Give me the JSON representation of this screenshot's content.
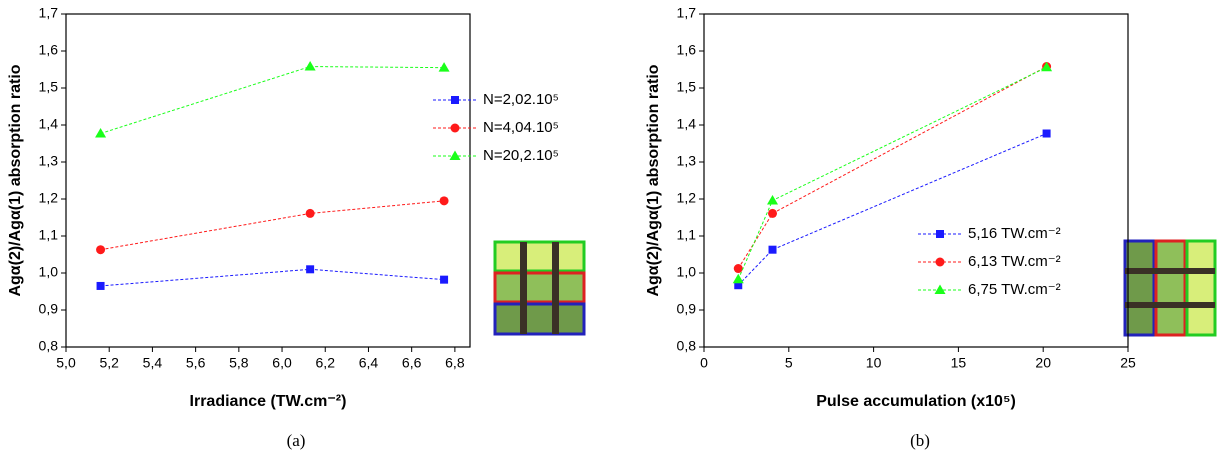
{
  "chart_data": [
    {
      "type": "line",
      "caption": "(a)",
      "x_label": "Irradiance (TW.cm⁻²)",
      "y_label": "Agα(2)/Agα(1) absorption ratio",
      "xlim": [
        5.0,
        6.87
      ],
      "ylim": [
        0.8,
        1.7
      ],
      "xticks": [
        {
          "value": 5.0,
          "label": "5,0"
        },
        {
          "value": 5.2,
          "label": "5,2"
        },
        {
          "value": 5.4,
          "label": "5,4"
        },
        {
          "value": 5.6,
          "label": "5,6"
        },
        {
          "value": 5.8,
          "label": "5,8"
        },
        {
          "value": 6.0,
          "label": "6,0"
        },
        {
          "value": 6.2,
          "label": "6,2"
        },
        {
          "value": 6.4,
          "label": "6,4"
        },
        {
          "value": 6.6,
          "label": "6,6"
        },
        {
          "value": 6.8,
          "label": "6,8"
        }
      ],
      "yticks": [
        {
          "value": 0.8,
          "label": "0,8"
        },
        {
          "value": 0.9,
          "label": "0,9"
        },
        {
          "value": 1.0,
          "label": "1,0"
        },
        {
          "value": 1.1,
          "label": "1,1"
        },
        {
          "value": 1.2,
          "label": "1,2"
        },
        {
          "value": 1.3,
          "label": "1,3"
        },
        {
          "value": 1.4,
          "label": "1,4"
        },
        {
          "value": 1.5,
          "label": "1,5"
        },
        {
          "value": 1.6,
          "label": "1,6"
        },
        {
          "value": 1.7,
          "label": "1,7"
        }
      ],
      "x": [
        5.16,
        6.13,
        6.75
      ],
      "series": [
        {
          "name": "N=2,02.10⁵",
          "color": "#1a1aff",
          "marker": "square",
          "values": [
            0.965,
            1.01,
            0.982
          ]
        },
        {
          "name": "N=4,04.10⁵",
          "color": "#ff1a1a",
          "marker": "circle",
          "values": [
            1.063,
            1.161,
            1.195
          ]
        },
        {
          "name": "N=20,2.10⁵",
          "color": "#1aff1a",
          "marker": "triangle",
          "values": [
            1.377,
            1.558,
            1.555
          ]
        }
      ]
    },
    {
      "type": "line",
      "caption": "(b)",
      "x_label": "Pulse accumulation (x10⁵)",
      "y_label": "Agα(2)/Agα(1) absorption ratio",
      "xlim": [
        0,
        25
      ],
      "ylim": [
        0.8,
        1.7
      ],
      "xticks": [
        0,
        5,
        10,
        15,
        20,
        25
      ],
      "yticks": [
        {
          "value": 0.8,
          "label": "0,8"
        },
        {
          "value": 0.9,
          "label": "0,9"
        },
        {
          "value": 1.0,
          "label": "1,0"
        },
        {
          "value": 1.1,
          "label": "1,1"
        },
        {
          "value": 1.2,
          "label": "1,2"
        },
        {
          "value": 1.3,
          "label": "1,3"
        },
        {
          "value": 1.4,
          "label": "1,4"
        },
        {
          "value": 1.5,
          "label": "1,5"
        },
        {
          "value": 1.6,
          "label": "1,6"
        },
        {
          "value": 1.7,
          "label": "1,7"
        }
      ],
      "x": [
        2.02,
        4.04,
        20.2
      ],
      "series": [
        {
          "name": "5,16 TW.cm⁻²",
          "color": "#1a1aff",
          "marker": "square",
          "values": [
            0.967,
            1.063,
            1.377
          ]
        },
        {
          "name": "6,13 TW.cm⁻²",
          "color": "#ff1a1a",
          "marker": "circle",
          "values": [
            1.012,
            1.161,
            1.558
          ]
        },
        {
          "name": "6,75 TW.cm⁻²",
          "color": "#1aff1a",
          "marker": "triangle",
          "values": [
            0.983,
            1.196,
            1.556
          ]
        }
      ]
    }
  ]
}
